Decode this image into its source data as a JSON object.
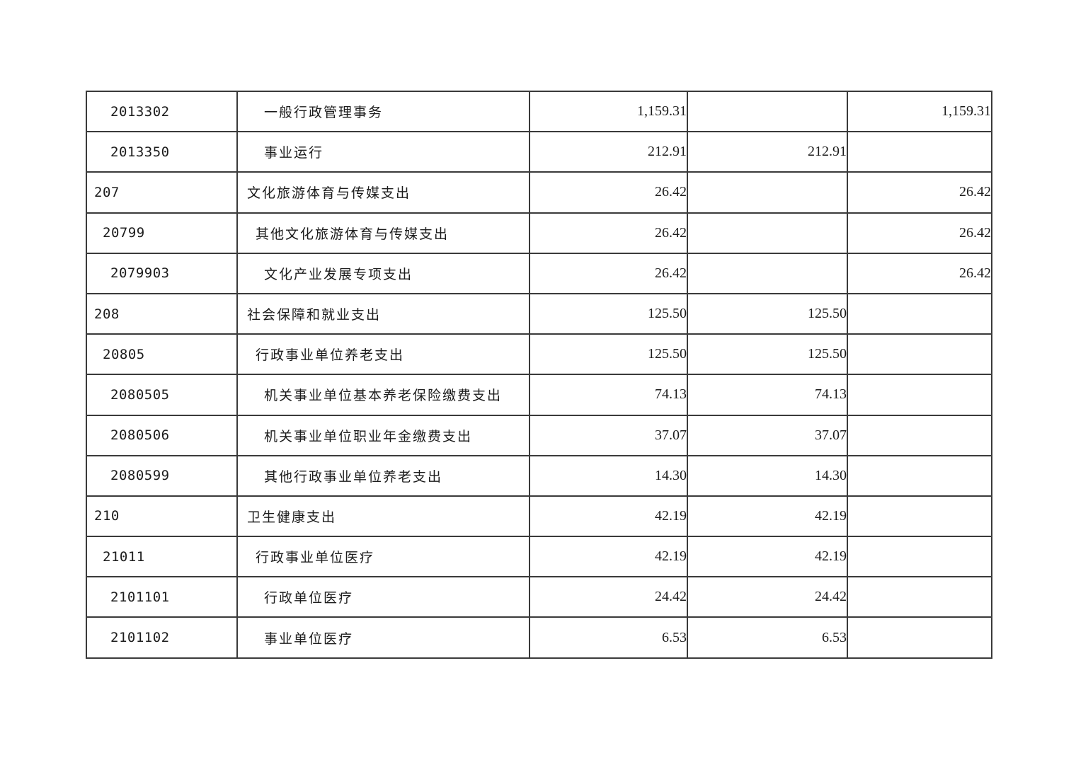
{
  "table": {
    "border_color": "#3a3a3a",
    "text_color": "#1c1c1c",
    "columns": {
      "code_width": 213,
      "name_width": 413,
      "amount1_width": 223,
      "amount2_width": 226,
      "amount3_width": 204
    },
    "rows": [
      {
        "level": 3,
        "code": "2013302",
        "name": "一般行政管理事务",
        "col3": "1,159.31",
        "col4": "",
        "col5": "1,159.31"
      },
      {
        "level": 3,
        "code": "2013350",
        "name": "事业运行",
        "col3": "212.91",
        "col4": "212.91",
        "col5": ""
      },
      {
        "level": 1,
        "code": "207",
        "name": "文化旅游体育与传媒支出",
        "col3": "26.42",
        "col4": "",
        "col5": "26.42"
      },
      {
        "level": 2,
        "code": "20799",
        "name": "其他文化旅游体育与传媒支出",
        "col3": "26.42",
        "col4": "",
        "col5": "26.42"
      },
      {
        "level": 3,
        "code": "2079903",
        "name": "文化产业发展专项支出",
        "col3": "26.42",
        "col4": "",
        "col5": "26.42"
      },
      {
        "level": 1,
        "code": "208",
        "name": "社会保障和就业支出",
        "col3": "125.50",
        "col4": "125.50",
        "col5": ""
      },
      {
        "level": 2,
        "code": "20805",
        "name": "行政事业单位养老支出",
        "col3": "125.50",
        "col4": "125.50",
        "col5": ""
      },
      {
        "level": 3,
        "code": "2080505",
        "name": "机关事业单位基本养老保险缴费支出",
        "col3": "74.13",
        "col4": "74.13",
        "col5": ""
      },
      {
        "level": 3,
        "code": "2080506",
        "name": "机关事业单位职业年金缴费支出",
        "col3": "37.07",
        "col4": "37.07",
        "col5": ""
      },
      {
        "level": 3,
        "code": "2080599",
        "name": "其他行政事业单位养老支出",
        "col3": "14.30",
        "col4": "14.30",
        "col5": ""
      },
      {
        "level": 1,
        "code": "210",
        "name": "卫生健康支出",
        "col3": "42.19",
        "col4": "42.19",
        "col5": ""
      },
      {
        "level": 2,
        "code": "21011",
        "name": "行政事业单位医疗",
        "col3": "42.19",
        "col4": "42.19",
        "col5": ""
      },
      {
        "level": 3,
        "code": "2101101",
        "name": "行政单位医疗",
        "col3": "24.42",
        "col4": "24.42",
        "col5": ""
      },
      {
        "level": 3,
        "code": "2101102",
        "name": "事业单位医疗",
        "col3": "6.53",
        "col4": "6.53",
        "col5": ""
      }
    ]
  }
}
